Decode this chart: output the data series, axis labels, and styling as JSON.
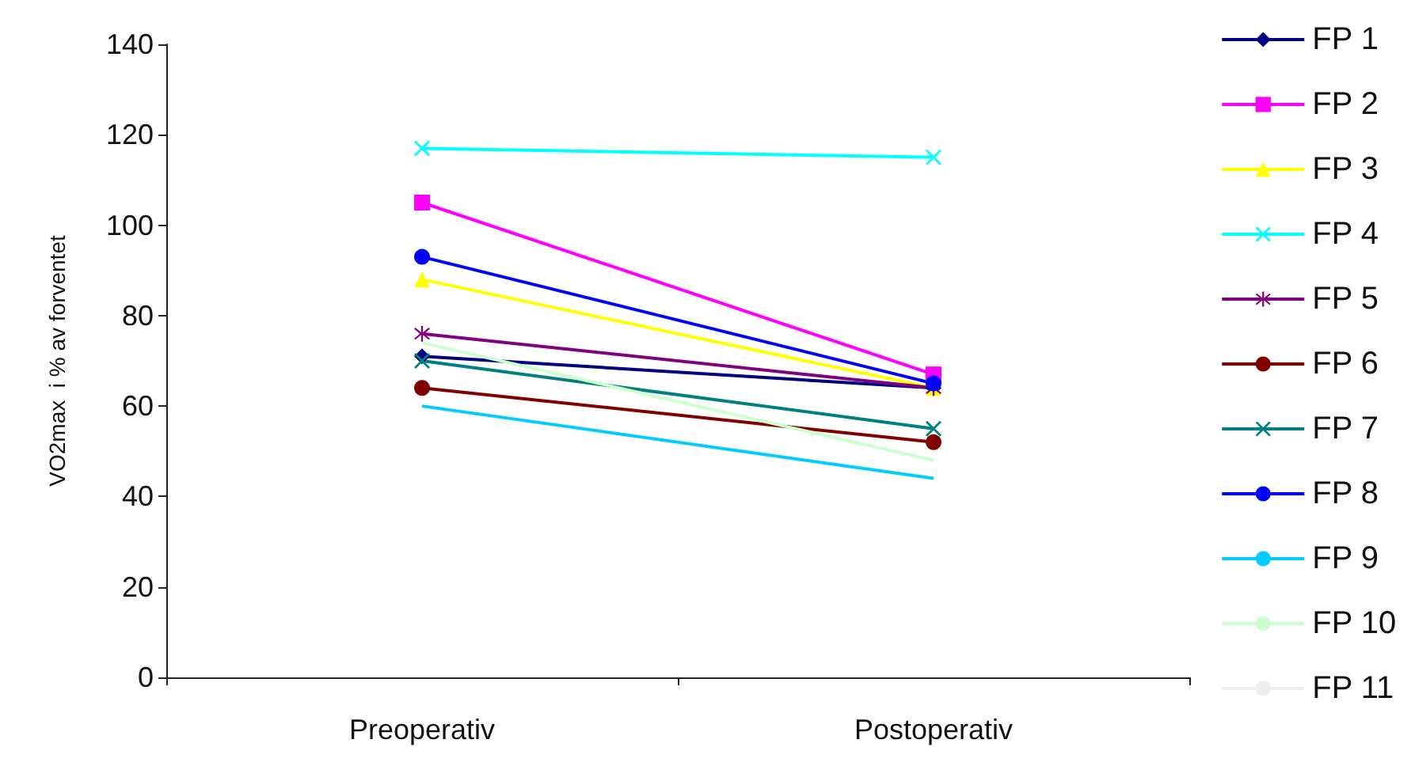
{
  "chart_data": {
    "type": "line",
    "ylabel": "VO2max  i % av forventet",
    "categories": [
      "Preoperativ",
      "Postoperativ"
    ],
    "ylim": [
      0,
      140
    ],
    "yticks": [
      0,
      20,
      40,
      60,
      80,
      100,
      120,
      140
    ],
    "grid": false,
    "legend": "right",
    "series": [
      {
        "name": "FP 1",
        "color": "#000080",
        "marker": "diamond",
        "values": [
          71,
          64
        ]
      },
      {
        "name": "FP 2",
        "color": "#ff00ff",
        "marker": "square",
        "values": [
          105,
          67
        ]
      },
      {
        "name": "FP 3",
        "color": "#ffff00",
        "marker": "triangle",
        "values": [
          88,
          64
        ]
      },
      {
        "name": "FP 4",
        "color": "#00ffff",
        "marker": "cross",
        "values": [
          117,
          115
        ]
      },
      {
        "name": "FP 5",
        "color": "#800080",
        "marker": "star",
        "values": [
          76,
          64
        ]
      },
      {
        "name": "FP 6",
        "color": "#800000",
        "marker": "circle",
        "values": [
          64,
          52
        ]
      },
      {
        "name": "FP 7",
        "color": "#008080",
        "marker": "cross",
        "values": [
          70,
          55
        ]
      },
      {
        "name": "FP 8",
        "color": "#0000ff",
        "marker": "circle",
        "values": [
          93,
          65
        ]
      },
      {
        "name": "FP 9",
        "color": "#00ccff",
        "marker": "none",
        "values": [
          60,
          44
        ]
      },
      {
        "name": "FP 10",
        "color": "#ccffcc",
        "marker": "none",
        "values": [
          74,
          48
        ]
      },
      {
        "name": "FP 11",
        "color": "#eeeeee",
        "marker": "none",
        "values": [
          null,
          null
        ]
      }
    ]
  }
}
